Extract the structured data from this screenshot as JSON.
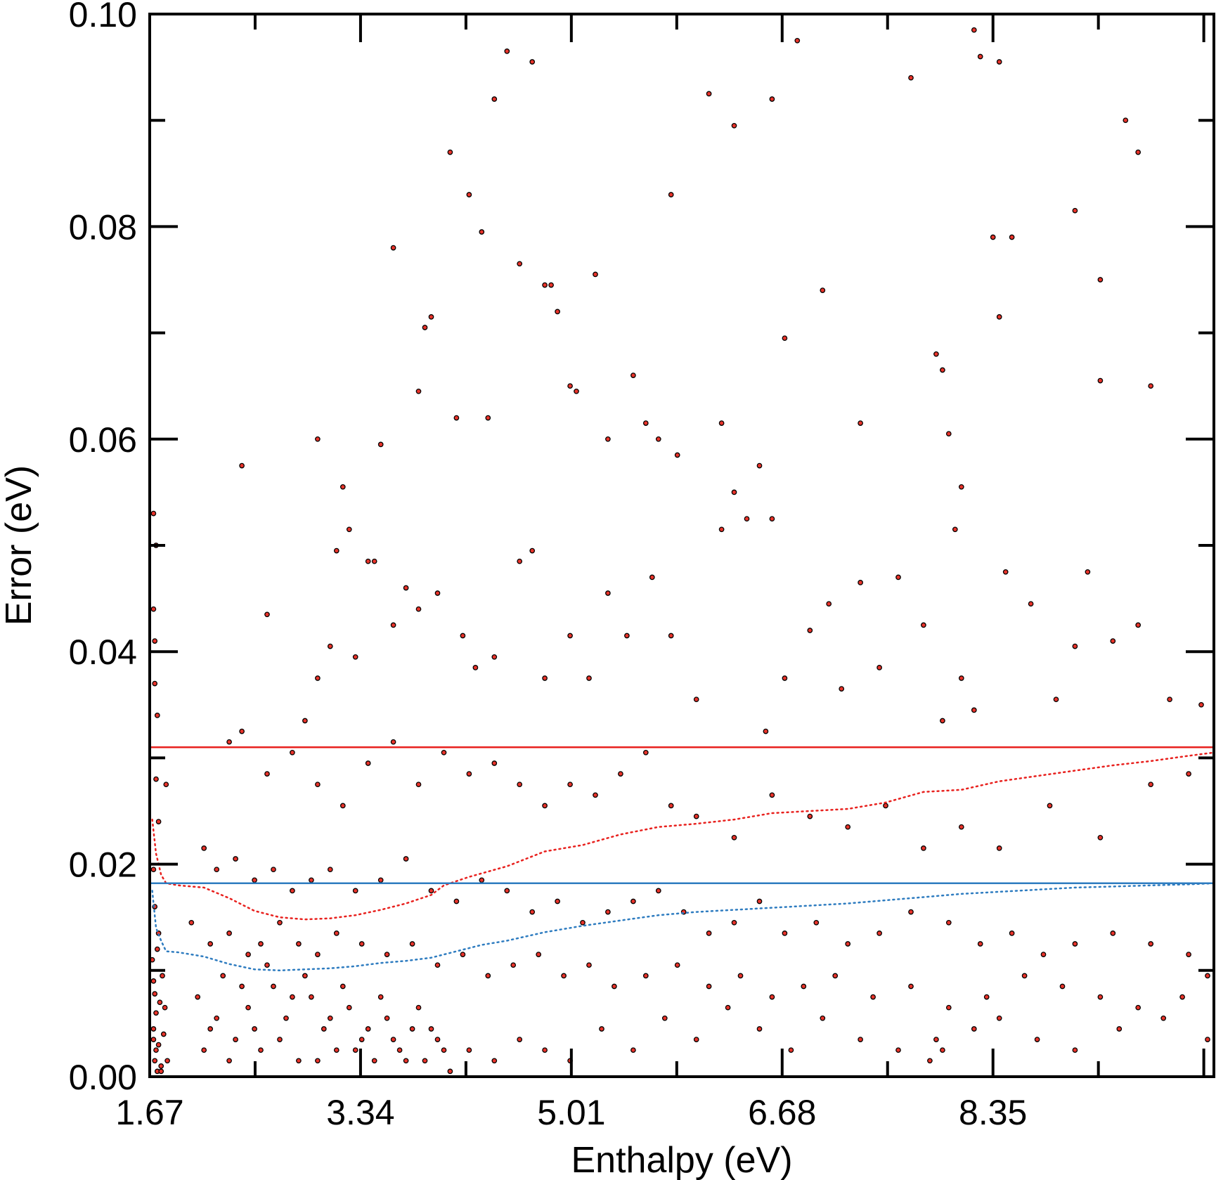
{
  "chart_data": {
    "type": "scatter",
    "title": "",
    "xlabel": "Enthalpy (eV)",
    "ylabel": "Error (eV)",
    "xlim": [
      1.67,
      10.1
    ],
    "ylim": [
      0.0,
      0.1
    ],
    "xticks": [
      "1.67",
      "3.34",
      "5.01",
      "6.68",
      "8.35"
    ],
    "yticks": [
      "0.00",
      "0.02",
      "0.04",
      "0.06",
      "0.08",
      "0.10"
    ],
    "grid": false,
    "legend": "none",
    "colors": {
      "points_fill": "#e8332a",
      "points_edge": "#000000",
      "red_line": "#e8211e",
      "blue_line": "#2e7cc0"
    },
    "hlines": [
      {
        "y": 0.031,
        "color": "#e8211e",
        "style": "solid"
      },
      {
        "y": 0.0182,
        "color": "#2e7cc0",
        "style": "solid"
      }
    ],
    "series": [
      {
        "style": "dotted",
        "color": "#e8211e",
        "x": [
          1.69,
          1.72,
          1.76,
          1.8,
          1.9,
          2.1,
          2.3,
          2.5,
          2.7,
          2.9,
          3.1,
          3.3,
          3.5,
          3.7,
          3.9,
          4.0,
          4.2,
          4.5,
          4.8,
          5.1,
          5.4,
          5.7,
          6.0,
          6.3,
          6.6,
          6.9,
          7.2,
          7.5,
          7.8,
          8.1,
          8.4,
          8.7,
          9.0,
          9.3,
          9.6,
          9.9,
          10.1
        ],
        "y": [
          0.0242,
          0.021,
          0.019,
          0.0182,
          0.018,
          0.0178,
          0.0168,
          0.0156,
          0.015,
          0.0148,
          0.0149,
          0.0152,
          0.0157,
          0.0163,
          0.0171,
          0.018,
          0.0188,
          0.0198,
          0.0212,
          0.0218,
          0.0228,
          0.0235,
          0.0238,
          0.0242,
          0.0248,
          0.025,
          0.0252,
          0.0258,
          0.0268,
          0.027,
          0.0278,
          0.0283,
          0.0288,
          0.0293,
          0.0297,
          0.0302,
          0.0305
        ]
      },
      {
        "style": "dotted",
        "color": "#2e7cc0",
        "x": [
          1.69,
          1.72,
          1.76,
          1.8,
          1.9,
          2.1,
          2.3,
          2.5,
          2.7,
          2.9,
          3.1,
          3.3,
          3.5,
          3.7,
          3.9,
          4.1,
          4.3,
          4.5,
          4.8,
          5.1,
          5.4,
          5.7,
          6.0,
          6.3,
          6.6,
          6.9,
          7.2,
          7.5,
          7.8,
          8.1,
          8.4,
          8.7,
          9.0,
          9.3,
          9.6,
          9.9,
          10.1
        ],
        "y": [
          0.0175,
          0.014,
          0.0128,
          0.0118,
          0.0117,
          0.0113,
          0.0106,
          0.0101,
          0.01,
          0.0101,
          0.0102,
          0.0104,
          0.0107,
          0.0109,
          0.0112,
          0.0118,
          0.0124,
          0.0128,
          0.0136,
          0.0142,
          0.0147,
          0.0152,
          0.0155,
          0.0157,
          0.0159,
          0.0161,
          0.0163,
          0.0166,
          0.0169,
          0.0172,
          0.0174,
          0.0176,
          0.0178,
          0.0179,
          0.018,
          0.0181,
          0.0182
        ]
      }
    ],
    "scatter_points": [
      [
        1.7,
        0.053
      ],
      [
        1.71,
        0.041
      ],
      [
        1.72,
        0.05
      ],
      [
        1.7,
        0.044
      ],
      [
        1.71,
        0.037
      ],
      [
        1.73,
        0.034
      ],
      [
        1.72,
        0.028
      ],
      [
        1.74,
        0.024
      ],
      [
        1.8,
        0.0275
      ],
      [
        1.7,
        0.0195
      ],
      [
        1.71,
        0.016
      ],
      [
        1.73,
        0.012
      ],
      [
        1.7,
        0.009
      ],
      [
        1.72,
        0.006
      ],
      [
        1.74,
        0.003
      ],
      [
        1.76,
        0.001
      ],
      [
        1.71,
        0.0015
      ],
      [
        1.78,
        0.004
      ],
      [
        1.75,
        0.007
      ],
      [
        1.7,
        0.0035
      ],
      [
        1.73,
        0.0005
      ],
      [
        1.69,
        0.011
      ],
      [
        1.77,
        0.0095
      ],
      [
        1.72,
        0.0025
      ],
      [
        1.81,
        0.0015
      ],
      [
        1.79,
        0.0065
      ],
      [
        1.74,
        0.0135
      ],
      [
        1.7,
        0.0045
      ],
      [
        1.76,
        0.0005
      ],
      [
        1.71,
        0.0078
      ],
      [
        2.4,
        0.0575
      ],
      [
        2.6,
        0.0435
      ],
      [
        3.0,
        0.06
      ],
      [
        3.2,
        0.0555
      ],
      [
        3.25,
        0.0515
      ],
      [
        3.15,
        0.0495
      ],
      [
        3.4,
        0.0485
      ],
      [
        3.5,
        0.0595
      ],
      [
        3.6,
        0.078
      ],
      [
        3.8,
        0.0645
      ],
      [
        3.9,
        0.0715
      ],
      [
        3.85,
        0.0705
      ],
      [
        4.2,
        0.083
      ],
      [
        4.3,
        0.0795
      ],
      [
        4.5,
        0.0965
      ],
      [
        4.7,
        0.0955
      ],
      [
        4.4,
        0.092
      ],
      [
        4.05,
        0.087
      ],
      [
        4.1,
        0.062
      ],
      [
        4.35,
        0.062
      ],
      [
        4.6,
        0.0765
      ],
      [
        4.8,
        0.0745
      ],
      [
        4.85,
        0.0745
      ],
      [
        4.9,
        0.072
      ],
      [
        5.0,
        0.065
      ],
      [
        5.05,
        0.0645
      ],
      [
        5.2,
        0.0755
      ],
      [
        5.5,
        0.066
      ],
      [
        5.8,
        0.083
      ],
      [
        6.1,
        0.0925
      ],
      [
        6.3,
        0.0895
      ],
      [
        6.6,
        0.092
      ],
      [
        6.8,
        0.0975
      ],
      [
        7.0,
        0.074
      ],
      [
        7.3,
        0.0615
      ],
      [
        7.7,
        0.094
      ],
      [
        7.9,
        0.068
      ],
      [
        7.95,
        0.0665
      ],
      [
        8.2,
        0.0985
      ],
      [
        8.25,
        0.096
      ],
      [
        8.4,
        0.0955
      ],
      [
        8.35,
        0.079
      ],
      [
        8.5,
        0.079
      ],
      [
        8.4,
        0.0715
      ],
      [
        9.0,
        0.0815
      ],
      [
        9.2,
        0.075
      ],
      [
        9.4,
        0.09
      ],
      [
        9.5,
        0.087
      ],
      [
        9.6,
        0.065
      ],
      [
        9.2,
        0.0655
      ],
      [
        5.3,
        0.06
      ],
      [
        5.6,
        0.0615
      ],
      [
        5.7,
        0.06
      ],
      [
        5.85,
        0.0585
      ],
      [
        6.2,
        0.0615
      ],
      [
        6.3,
        0.055
      ],
      [
        6.5,
        0.0575
      ],
      [
        6.6,
        0.0525
      ],
      [
        6.7,
        0.0695
      ],
      [
        8.0,
        0.0605
      ],
      [
        8.1,
        0.0555
      ],
      [
        8.05,
        0.0515
      ],
      [
        2.9,
        0.0335
      ],
      [
        3.0,
        0.0375
      ],
      [
        3.1,
        0.0405
      ],
      [
        3.3,
        0.0395
      ],
      [
        3.45,
        0.0485
      ],
      [
        3.6,
        0.0425
      ],
      [
        3.7,
        0.046
      ],
      [
        3.8,
        0.044
      ],
      [
        3.95,
        0.0455
      ],
      [
        4.15,
        0.0415
      ],
      [
        4.25,
        0.0385
      ],
      [
        4.4,
        0.0395
      ],
      [
        4.6,
        0.0485
      ],
      [
        4.7,
        0.0495
      ],
      [
        4.8,
        0.0375
      ],
      [
        5.0,
        0.0415
      ],
      [
        5.15,
        0.0375
      ],
      [
        5.3,
        0.0455
      ],
      [
        5.45,
        0.0415
      ],
      [
        5.65,
        0.047
      ],
      [
        5.8,
        0.0415
      ],
      [
        6.0,
        0.0355
      ],
      [
        6.2,
        0.0515
      ],
      [
        6.4,
        0.0525
      ],
      [
        6.55,
        0.0325
      ],
      [
        6.7,
        0.0375
      ],
      [
        6.9,
        0.042
      ],
      [
        7.05,
        0.0445
      ],
      [
        7.15,
        0.0365
      ],
      [
        7.3,
        0.0465
      ],
      [
        7.45,
        0.0385
      ],
      [
        7.6,
        0.047
      ],
      [
        7.8,
        0.0425
      ],
      [
        7.95,
        0.0335
      ],
      [
        8.1,
        0.0375
      ],
      [
        8.2,
        0.0345
      ],
      [
        8.45,
        0.0475
      ],
      [
        8.65,
        0.0445
      ],
      [
        8.85,
        0.0355
      ],
      [
        9.0,
        0.0405
      ],
      [
        9.1,
        0.0475
      ],
      [
        9.3,
        0.041
      ],
      [
        9.5,
        0.0425
      ],
      [
        9.75,
        0.0355
      ],
      [
        10.0,
        0.035
      ],
      [
        2.3,
        0.0315
      ],
      [
        2.4,
        0.0325
      ],
      [
        2.6,
        0.0285
      ],
      [
        2.8,
        0.0305
      ],
      [
        3.0,
        0.0275
      ],
      [
        3.2,
        0.0255
      ],
      [
        3.4,
        0.0295
      ],
      [
        3.6,
        0.0315
      ],
      [
        3.8,
        0.0275
      ],
      [
        4.0,
        0.0305
      ],
      [
        4.2,
        0.0285
      ],
      [
        4.4,
        0.0295
      ],
      [
        4.6,
        0.0275
      ],
      [
        4.8,
        0.0255
      ],
      [
        5.0,
        0.0275
      ],
      [
        5.2,
        0.0265
      ],
      [
        5.4,
        0.0285
      ],
      [
        5.6,
        0.0305
      ],
      [
        5.8,
        0.0255
      ],
      [
        6.0,
        0.0245
      ],
      [
        6.3,
        0.0225
      ],
      [
        6.6,
        0.0265
      ],
      [
        6.9,
        0.0245
      ],
      [
        7.2,
        0.0235
      ],
      [
        7.5,
        0.0255
      ],
      [
        7.8,
        0.0215
      ],
      [
        8.1,
        0.0235
      ],
      [
        8.4,
        0.0215
      ],
      [
        8.8,
        0.0255
      ],
      [
        9.2,
        0.0225
      ],
      [
        9.6,
        0.0275
      ],
      [
        9.9,
        0.0285
      ],
      [
        2.1,
        0.0215
      ],
      [
        2.2,
        0.0195
      ],
      [
        2.35,
        0.0205
      ],
      [
        2.5,
        0.0185
      ],
      [
        2.65,
        0.0195
      ],
      [
        2.8,
        0.0175
      ],
      [
        2.95,
        0.0185
      ],
      [
        3.1,
        0.0195
      ],
      [
        3.3,
        0.0175
      ],
      [
        3.5,
        0.0185
      ],
      [
        3.7,
        0.0205
      ],
      [
        3.9,
        0.0175
      ],
      [
        4.1,
        0.0165
      ],
      [
        4.3,
        0.0185
      ],
      [
        4.5,
        0.0175
      ],
      [
        4.7,
        0.0155
      ],
      [
        4.9,
        0.0165
      ],
      [
        5.1,
        0.0145
      ],
      [
        5.3,
        0.0155
      ],
      [
        5.5,
        0.0165
      ],
      [
        5.7,
        0.0175
      ],
      [
        5.9,
        0.0155
      ],
      [
        6.1,
        0.0135
      ],
      [
        6.3,
        0.0145
      ],
      [
        6.5,
        0.0165
      ],
      [
        6.7,
        0.0135
      ],
      [
        6.95,
        0.0145
      ],
      [
        7.2,
        0.0125
      ],
      [
        7.45,
        0.0135
      ],
      [
        7.7,
        0.0155
      ],
      [
        8.0,
        0.0145
      ],
      [
        8.25,
        0.0125
      ],
      [
        8.5,
        0.0135
      ],
      [
        8.75,
        0.0115
      ],
      [
        9.0,
        0.0125
      ],
      [
        9.3,
        0.0135
      ],
      [
        9.6,
        0.0125
      ],
      [
        9.9,
        0.0115
      ],
      [
        10.05,
        0.0095
      ],
      [
        2.0,
        0.0145
      ],
      [
        2.15,
        0.0125
      ],
      [
        2.3,
        0.0135
      ],
      [
        2.45,
        0.0115
      ],
      [
        2.55,
        0.0125
      ],
      [
        2.7,
        0.0145
      ],
      [
        2.85,
        0.0125
      ],
      [
        3.0,
        0.0115
      ],
      [
        3.15,
        0.0135
      ],
      [
        3.35,
        0.0125
      ],
      [
        3.55,
        0.0115
      ],
      [
        3.75,
        0.0125
      ],
      [
        3.95,
        0.0105
      ],
      [
        4.15,
        0.0115
      ],
      [
        4.35,
        0.0095
      ],
      [
        4.55,
        0.0105
      ],
      [
        4.75,
        0.0115
      ],
      [
        4.95,
        0.0095
      ],
      [
        5.15,
        0.0105
      ],
      [
        5.35,
        0.0085
      ],
      [
        5.6,
        0.0095
      ],
      [
        5.85,
        0.0105
      ],
      [
        6.1,
        0.0085
      ],
      [
        6.35,
        0.0095
      ],
      [
        6.6,
        0.0075
      ],
      [
        6.85,
        0.0085
      ],
      [
        7.1,
        0.0095
      ],
      [
        7.4,
        0.0075
      ],
      [
        7.7,
        0.0085
      ],
      [
        8.0,
        0.0065
      ],
      [
        8.3,
        0.0075
      ],
      [
        8.6,
        0.0095
      ],
      [
        8.9,
        0.0085
      ],
      [
        9.2,
        0.0075
      ],
      [
        9.5,
        0.0065
      ],
      [
        9.85,
        0.0075
      ],
      [
        2.05,
        0.0075
      ],
      [
        2.15,
        0.0045
      ],
      [
        2.25,
        0.0095
      ],
      [
        2.35,
        0.0035
      ],
      [
        2.45,
        0.0065
      ],
      [
        2.55,
        0.0025
      ],
      [
        2.65,
        0.0085
      ],
      [
        2.75,
        0.0055
      ],
      [
        2.85,
        0.0015
      ],
      [
        2.95,
        0.0075
      ],
      [
        3.05,
        0.0045
      ],
      [
        3.15,
        0.0025
      ],
      [
        3.25,
        0.0065
      ],
      [
        3.35,
        0.0035
      ],
      [
        3.45,
        0.0015
      ],
      [
        3.55,
        0.0055
      ],
      [
        3.65,
        0.0025
      ],
      [
        3.75,
        0.0045
      ],
      [
        3.85,
        0.0015
      ],
      [
        3.95,
        0.0035
      ],
      [
        4.05,
        0.0005
      ],
      [
        4.2,
        0.0025
      ],
      [
        4.4,
        0.0015
      ],
      [
        4.6,
        0.0035
      ],
      [
        4.8,
        0.0025
      ],
      [
        5.0,
        0.0015
      ],
      [
        5.25,
        0.0045
      ],
      [
        5.5,
        0.0025
      ],
      [
        5.75,
        0.0055
      ],
      [
        6.0,
        0.0035
      ],
      [
        6.25,
        0.0065
      ],
      [
        6.5,
        0.0045
      ],
      [
        6.75,
        0.0025
      ],
      [
        7.0,
        0.0055
      ],
      [
        7.3,
        0.0035
      ],
      [
        7.6,
        0.0025
      ],
      [
        7.85,
        0.0015
      ],
      [
        7.9,
        0.0035
      ],
      [
        7.95,
        0.0025
      ],
      [
        8.2,
        0.0045
      ],
      [
        8.4,
        0.0055
      ],
      [
        8.7,
        0.0035
      ],
      [
        9.0,
        0.0025
      ],
      [
        9.35,
        0.0045
      ],
      [
        9.7,
        0.0055
      ],
      [
        10.05,
        0.0035
      ],
      [
        2.1,
        0.0025
      ],
      [
        2.2,
        0.0055
      ],
      [
        2.3,
        0.0015
      ],
      [
        2.4,
        0.0085
      ],
      [
        2.5,
        0.0045
      ],
      [
        2.6,
        0.0105
      ],
      [
        2.7,
        0.0035
      ],
      [
        2.8,
        0.0075
      ],
      [
        2.9,
        0.0095
      ],
      [
        3.0,
        0.0015
      ],
      [
        3.1,
        0.0055
      ],
      [
        3.2,
        0.0085
      ],
      [
        3.3,
        0.0025
      ],
      [
        3.4,
        0.0045
      ],
      [
        3.5,
        0.0075
      ],
      [
        3.6,
        0.0035
      ],
      [
        3.7,
        0.0015
      ],
      [
        3.8,
        0.0065
      ],
      [
        3.9,
        0.0045
      ],
      [
        4.0,
        0.0025
      ]
    ]
  }
}
